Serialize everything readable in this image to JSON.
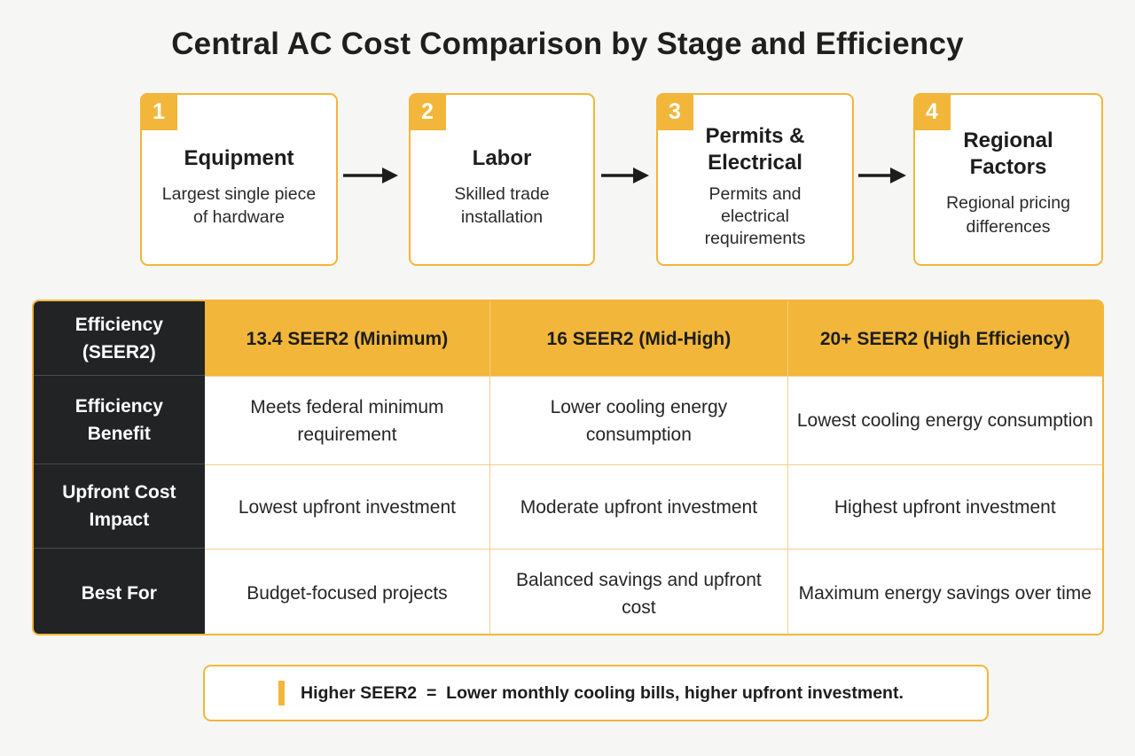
{
  "title": "Central AC Cost Comparison by Stage and Efficiency",
  "stages": [
    {
      "number": "1",
      "title": "Equipment",
      "description": "Largest single piece of hardware"
    },
    {
      "number": "2",
      "title": "Labor",
      "description": "Skilled trade installation"
    },
    {
      "number": "3",
      "title": "Permits & Electrical",
      "description": "Permits and electrical requirements"
    },
    {
      "number": "4",
      "title": "Regional Factors",
      "description": "Regional pricing differences"
    }
  ],
  "table": {
    "corner": "Efficiency (SEER2)",
    "columns": [
      "13.4 SEER2 (Minimum)",
      "16 SEER2 (Mid-High)",
      "20+ SEER2 (High Efficiency)"
    ],
    "rows": [
      {
        "label": "Efficiency Benefit",
        "cells": [
          "Meets federal minimum requirement",
          "Lower cooling energy consumption",
          "Lowest cooling energy consumption"
        ]
      },
      {
        "label": "Upfront Cost Impact",
        "cells": [
          "Lowest upfront investment",
          "Moderate upfront investment",
          "Highest upfront investment"
        ]
      },
      {
        "label": "Best For",
        "cells": [
          "Budget-focused projects",
          "Balanced savings and upfront cost",
          "Maximum energy savings over time"
        ]
      }
    ]
  },
  "note": "Higher SEER2  =  Lower monthly cooling bills, higher upfront investment.",
  "colors": {
    "accent": "#f2b63a",
    "dark": "#222325",
    "background": "#f6f6f4"
  }
}
